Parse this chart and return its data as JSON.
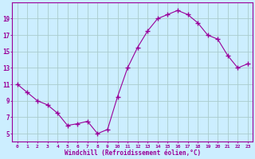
{
  "x": [
    0,
    1,
    2,
    3,
    4,
    5,
    6,
    7,
    8,
    9,
    10,
    11,
    12,
    13,
    14,
    15,
    16,
    17,
    18,
    19,
    20,
    21,
    22,
    23
  ],
  "y": [
    11,
    10,
    9,
    8.5,
    7.5,
    6,
    6.2,
    6.5,
    5,
    5.5,
    9.5,
    13,
    15.5,
    17.5,
    19,
    19.5,
    20,
    19.5,
    18.5,
    17,
    16.5,
    14.5,
    13,
    13.5
  ],
  "line_color": "#990099",
  "marker": "D",
  "marker_size": 2,
  "background_color": "#cceeff",
  "grid_color": "#aacccc",
  "xlabel": "Windchill (Refroidissement éolien,°C)",
  "xlabel_color": "#990099",
  "ytick_labels": [
    "5",
    "7",
    "9",
    "11",
    "13",
    "15",
    "17",
    "19"
  ],
  "ytick_values": [
    5,
    7,
    9,
    11,
    13,
    15,
    17,
    19
  ],
  "xtick_labels": [
    "0",
    "1",
    "2",
    "3",
    "4",
    "5",
    "6",
    "7",
    "8",
    "9",
    "10",
    "11",
    "12",
    "13",
    "14",
    "15",
    "16",
    "17",
    "18",
    "19",
    "20",
    "21",
    "22",
    "23"
  ],
  "xlim": [
    -0.5,
    23.5
  ],
  "ylim": [
    4,
    21
  ],
  "tick_color": "#990099",
  "spine_color": "#990099"
}
